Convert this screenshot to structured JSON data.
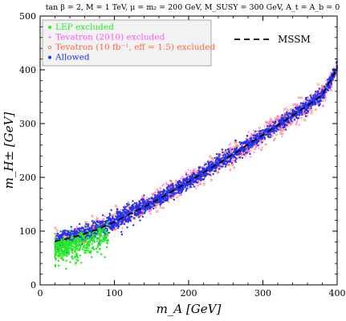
{
  "chart_data": {
    "type": "scatter",
    "title": "tan β = 2,  M = 1 TeV,  μ = m₂ = 200 GeV,  M_SUSY = 300 GeV, A_t = A_b = 0",
    "xlabel": "m_A [GeV]",
    "ylabel": "m_H± [GeV]",
    "xlim": [
      0,
      400
    ],
    "ylim": [
      0,
      500
    ],
    "xticks": [
      0,
      100,
      200,
      300,
      400
    ],
    "yticks": [
      0,
      100,
      200,
      300,
      400,
      500
    ],
    "grid": false,
    "legend_position": "top-left",
    "series": [
      {
        "name": "LEP excluded",
        "color": "#22ee22",
        "marker": "square",
        "x_range": [
          20,
          90
        ],
        "note_points": [
          [
            20,
            95
          ],
          [
            25,
            80
          ],
          [
            30,
            60
          ],
          [
            35,
            30
          ],
          [
            40,
            100
          ],
          [
            50,
            75
          ],
          [
            60,
            110
          ],
          [
            70,
            90
          ],
          [
            80,
            105
          ],
          [
            90,
            112
          ]
        ]
      },
      {
        "name": "Tevatron (2010) excluded",
        "color": "#ff55ff",
        "marker": "plus",
        "x_range": [
          20,
          400
        ]
      },
      {
        "name": "Tevatron (10 fb⁻¹, eff = 1.5) excluded",
        "color": "#ff6644",
        "marker": "dot",
        "x_range": [
          20,
          400
        ]
      },
      {
        "name": "Allowed",
        "color": "#2233ee",
        "marker": "dot",
        "x_range": [
          20,
          400
        ]
      }
    ],
    "curve": {
      "name": "MSSM",
      "style": "dashed",
      "color": "#000000",
      "x": [
        20,
        40,
        60,
        80,
        100,
        120,
        140,
        160,
        180,
        200,
        220,
        240,
        260,
        280,
        300,
        320,
        340,
        360,
        380,
        400
      ],
      "y": [
        81,
        87,
        95,
        105,
        117,
        131,
        145,
        160,
        176,
        192,
        209,
        226,
        243,
        261,
        279,
        297,
        315,
        334,
        353,
        403
      ]
    }
  }
}
